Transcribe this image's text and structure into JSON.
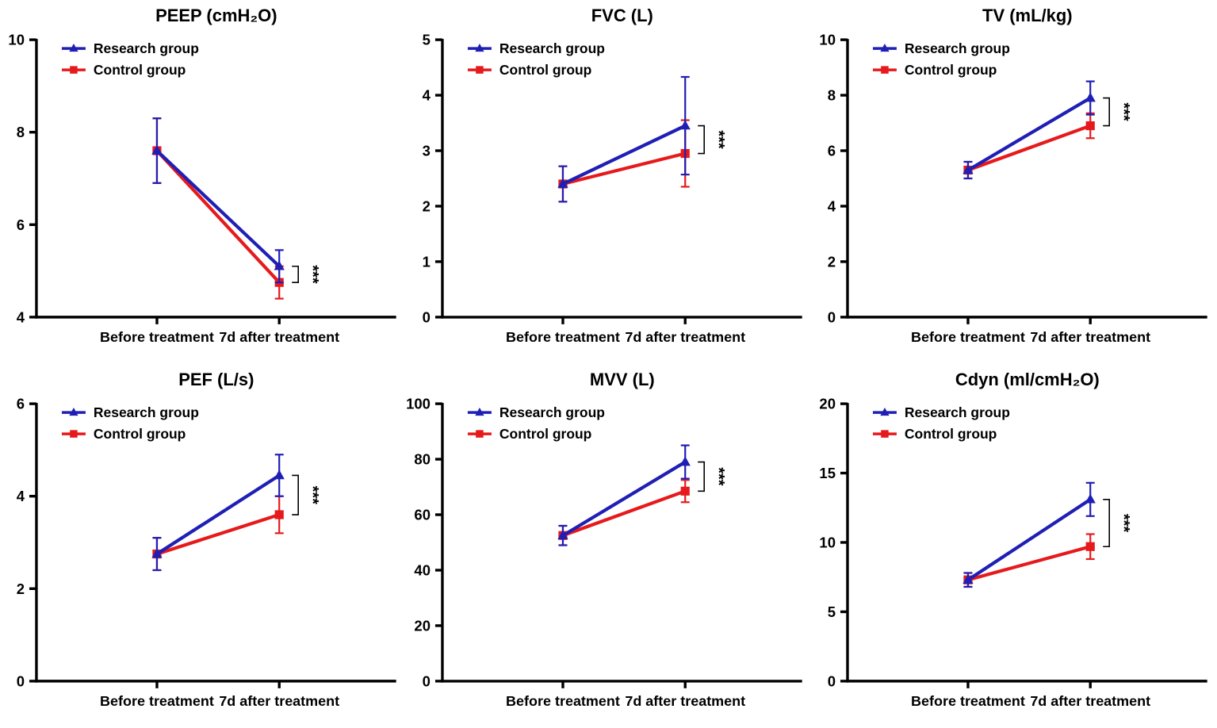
{
  "colors": {
    "research": "#1f1fb5",
    "control": "#e61a1c",
    "axis": "#000000",
    "background": "#ffffff"
  },
  "chart_data": [
    {
      "type": "line",
      "title": "PEEP (cmH₂O)",
      "categories": [
        "Before treatment",
        "7d after treatment"
      ],
      "ylim": [
        4,
        10
      ],
      "yticks": [
        4,
        6,
        8,
        10
      ],
      "grid": false,
      "legend_position": "top-left",
      "significance": "***",
      "series": [
        {
          "name": "Research group",
          "marker": "triangle",
          "color": "#1f1fb5",
          "values": [
            7.6,
            5.1
          ],
          "errors": [
            0.7,
            0.35
          ]
        },
        {
          "name": "Control group",
          "marker": "square",
          "color": "#e61a1c",
          "values": [
            7.6,
            4.75
          ],
          "errors": [
            0.7,
            0.35
          ]
        }
      ]
    },
    {
      "type": "line",
      "title": "FVC (L)",
      "categories": [
        "Before treatment",
        "7d after treatment"
      ],
      "ylim": [
        0,
        5
      ],
      "yticks": [
        0,
        1,
        2,
        3,
        4,
        5
      ],
      "grid": false,
      "legend_position": "top-left",
      "significance": "***",
      "series": [
        {
          "name": "Research group",
          "marker": "triangle",
          "color": "#1f1fb5",
          "values": [
            2.4,
            3.45
          ],
          "errors": [
            0.32,
            0.88
          ]
        },
        {
          "name": "Control group",
          "marker": "square",
          "color": "#e61a1c",
          "values": [
            2.4,
            2.95
          ],
          "errors": [
            0.32,
            0.6
          ]
        }
      ]
    },
    {
      "type": "line",
      "title": "TV (mL/kg)",
      "categories": [
        "Before treatment",
        "7d after treatment"
      ],
      "ylim": [
        0,
        10
      ],
      "yticks": [
        0,
        2,
        4,
        6,
        8,
        10
      ],
      "grid": false,
      "legend_position": "top-left",
      "significance": "***",
      "series": [
        {
          "name": "Research group",
          "marker": "triangle",
          "color": "#1f1fb5",
          "values": [
            5.3,
            7.9
          ],
          "errors": [
            0.3,
            0.6
          ]
        },
        {
          "name": "Control group",
          "marker": "square",
          "color": "#e61a1c",
          "values": [
            5.3,
            6.9
          ],
          "errors": [
            0.3,
            0.45
          ]
        }
      ]
    },
    {
      "type": "line",
      "title": "PEF (L/s)",
      "categories": [
        "Before treatment",
        "7d after treatment"
      ],
      "ylim": [
        0,
        6
      ],
      "yticks": [
        0,
        2,
        4,
        6
      ],
      "grid": false,
      "legend_position": "top-left",
      "significance": "***",
      "series": [
        {
          "name": "Research group",
          "marker": "triangle",
          "color": "#1f1fb5",
          "values": [
            2.75,
            4.45
          ],
          "errors": [
            0.35,
            0.45
          ]
        },
        {
          "name": "Control group",
          "marker": "square",
          "color": "#e61a1c",
          "values": [
            2.75,
            3.6
          ],
          "errors": [
            0.35,
            0.4
          ]
        }
      ]
    },
    {
      "type": "line",
      "title": "MVV (L)",
      "categories": [
        "Before treatment",
        "7d after treatment"
      ],
      "ylim": [
        0,
        100
      ],
      "yticks": [
        0,
        20,
        40,
        60,
        80,
        100
      ],
      "grid": false,
      "legend_position": "top-left",
      "significance": "***",
      "series": [
        {
          "name": "Research group",
          "marker": "triangle",
          "color": "#1f1fb5",
          "values": [
            52.5,
            79
          ],
          "errors": [
            3.5,
            6
          ]
        },
        {
          "name": "Control group",
          "marker": "square",
          "color": "#e61a1c",
          "values": [
            52.5,
            68.5
          ],
          "errors": [
            3.5,
            4
          ]
        }
      ]
    },
    {
      "type": "line",
      "title": "Cdyn (ml/cmH₂O)",
      "categories": [
        "Before treatment",
        "7d after treatment"
      ],
      "ylim": [
        0,
        20
      ],
      "yticks": [
        0,
        5,
        10,
        15,
        20
      ],
      "grid": false,
      "legend_position": "top-left",
      "significance": "***",
      "series": [
        {
          "name": "Research group",
          "marker": "triangle",
          "color": "#1f1fb5",
          "values": [
            7.3,
            13.1
          ],
          "errors": [
            0.5,
            1.2
          ]
        },
        {
          "name": "Control group",
          "marker": "square",
          "color": "#e61a1c",
          "values": [
            7.3,
            9.7
          ],
          "errors": [
            0.5,
            0.9
          ]
        }
      ]
    }
  ]
}
